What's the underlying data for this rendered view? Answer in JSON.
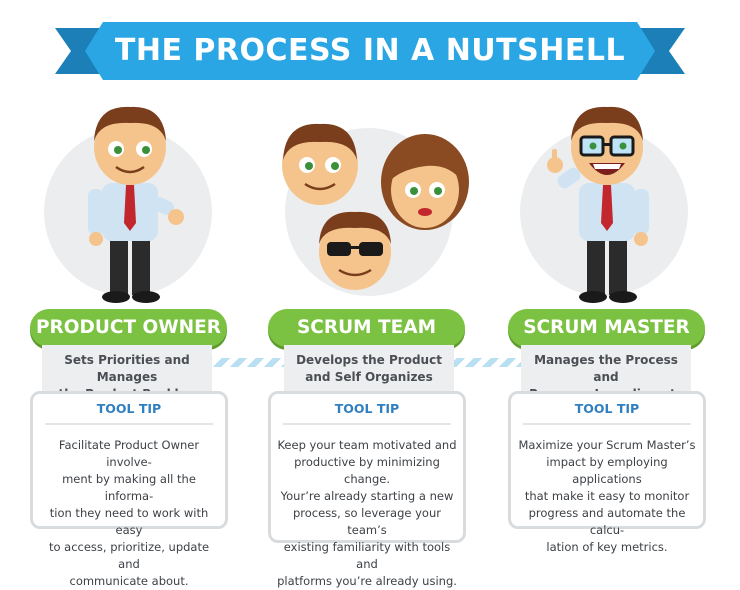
{
  "banner": {
    "title": "THE PROCESS IN A NUTSHELL"
  },
  "colors": {
    "banner_blue": "#2ba6e4",
    "banner_dark": "#1c7fb7",
    "pill_green": "#7cc242",
    "tooltip_blue": "#2f7fc1",
    "description_gray": "#eceef0"
  },
  "columns": [
    {
      "role": "PRODUCT OWNER",
      "description": [
        "Sets Priorities and Manages",
        "the Product Backlog"
      ],
      "tooltip_title": "TOOL TIP",
      "tooltip_lines": [
        "Facilitate Product Owner involve-",
        "ment by making all the informa-",
        "tion they need to work with easy",
        "to access, prioritize,  update and",
        "communicate about."
      ]
    },
    {
      "role": "SCRUM TEAM",
      "description": [
        "Develops the Product",
        "and Self Organizes"
      ],
      "tooltip_title": "TOOL TIP",
      "tooltip_lines": [
        "Keep your team motivated and",
        "productive by minimizing change.",
        "Your’re already starting a new",
        "process, so leverage your team’s",
        "existing familiarity with tools and",
        "platforms you’re already using."
      ]
    },
    {
      "role": "SCRUM MASTER",
      "description": [
        "Manages the Process and",
        "Removes Impediments"
      ],
      "tooltip_title": "TOOL TIP",
      "tooltip_lines": [
        "Maximize your Scrum Master’s",
        "impact by employing applications",
        "that make it easy to monitor",
        "progress and automate the calcu-",
        "lation of key metrics."
      ]
    }
  ]
}
